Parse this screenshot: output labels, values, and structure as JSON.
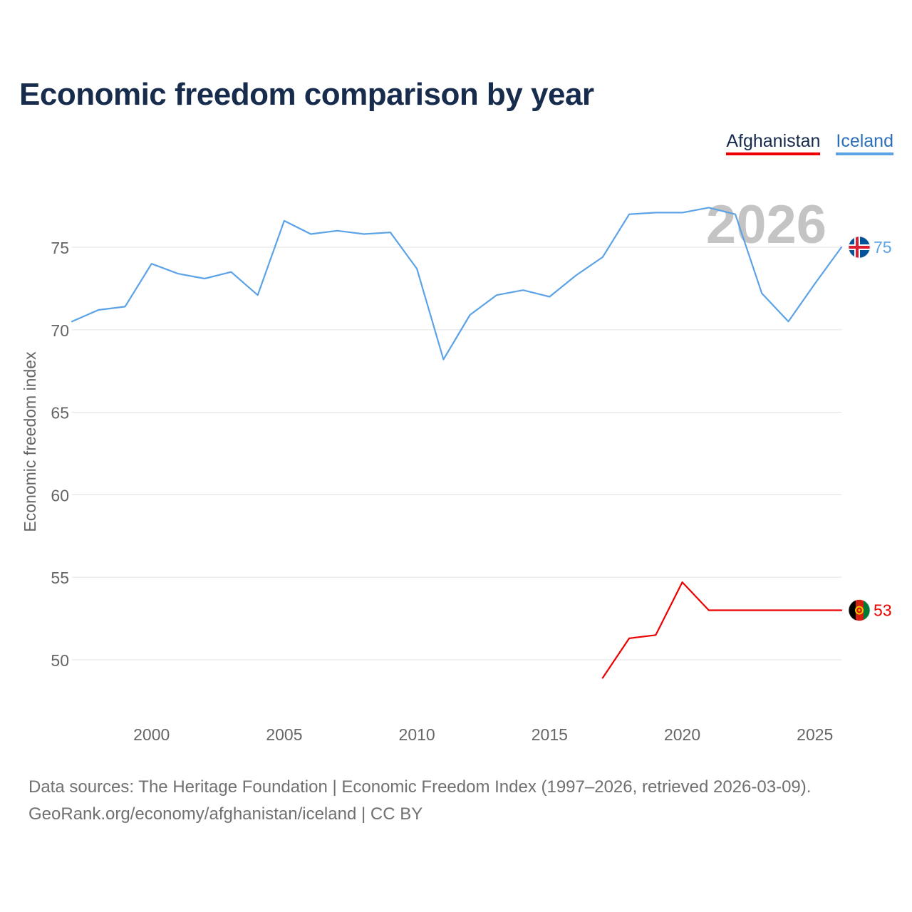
{
  "title": "Economic freedom comparison by year",
  "legend": [
    {
      "label": "Afghanistan",
      "color": "#ee0000"
    },
    {
      "label": "Iceland",
      "color": "#5ba3e6"
    }
  ],
  "footer": {
    "line1": "Data sources: The Heritage Foundation | Economic Freedom Index (1997–2026, retrieved 2026-03-09).",
    "line2": "GeoRank.org/economy/afghanistan/iceland | CC BY"
  },
  "chart_data": {
    "type": "line",
    "title": "Economic freedom comparison by year",
    "xlabel": "",
    "ylabel": "Economic freedom index",
    "xlim": [
      1997,
      2026
    ],
    "ylim": [
      46,
      79
    ],
    "x_ticks": [
      2000,
      2005,
      2010,
      2015,
      2020,
      2025
    ],
    "y_ticks": [
      50,
      55,
      60,
      65,
      70,
      75
    ],
    "grid": true,
    "year_watermark": "2026",
    "series": [
      {
        "name": "Iceland",
        "color": "#5ba3e6",
        "end_label": "75",
        "flag": "iceland",
        "points": [
          [
            1997,
            70.5
          ],
          [
            1998,
            71.2
          ],
          [
            1999,
            71.4
          ],
          [
            2000,
            74.0
          ],
          [
            2001,
            73.4
          ],
          [
            2002,
            73.1
          ],
          [
            2003,
            73.5
          ],
          [
            2004,
            72.1
          ],
          [
            2005,
            76.6
          ],
          [
            2006,
            75.8
          ],
          [
            2007,
            76.0
          ],
          [
            2008,
            75.8
          ],
          [
            2009,
            75.9
          ],
          [
            2010,
            73.7
          ],
          [
            2011,
            68.2
          ],
          [
            2012,
            70.9
          ],
          [
            2013,
            72.1
          ],
          [
            2014,
            72.4
          ],
          [
            2015,
            72.0
          ],
          [
            2016,
            73.3
          ],
          [
            2017,
            74.4
          ],
          [
            2018,
            77.0
          ],
          [
            2019,
            77.1
          ],
          [
            2020,
            77.1
          ],
          [
            2021,
            77.4
          ],
          [
            2022,
            77.0
          ],
          [
            2023,
            72.2
          ],
          [
            2024,
            70.5
          ],
          [
            2025,
            72.8
          ],
          [
            2026,
            75.0
          ]
        ]
      },
      {
        "name": "Afghanistan",
        "color": "#ee0000",
        "end_label": "53",
        "flag": "afghanistan",
        "points": [
          [
            2017,
            48.9
          ],
          [
            2018,
            51.3
          ],
          [
            2019,
            51.5
          ],
          [
            2020,
            54.7
          ],
          [
            2021,
            53.0
          ],
          [
            2022,
            53.0
          ],
          [
            2023,
            53.0
          ],
          [
            2024,
            53.0
          ],
          [
            2025,
            53.0
          ],
          [
            2026,
            53.0
          ]
        ]
      }
    ]
  }
}
